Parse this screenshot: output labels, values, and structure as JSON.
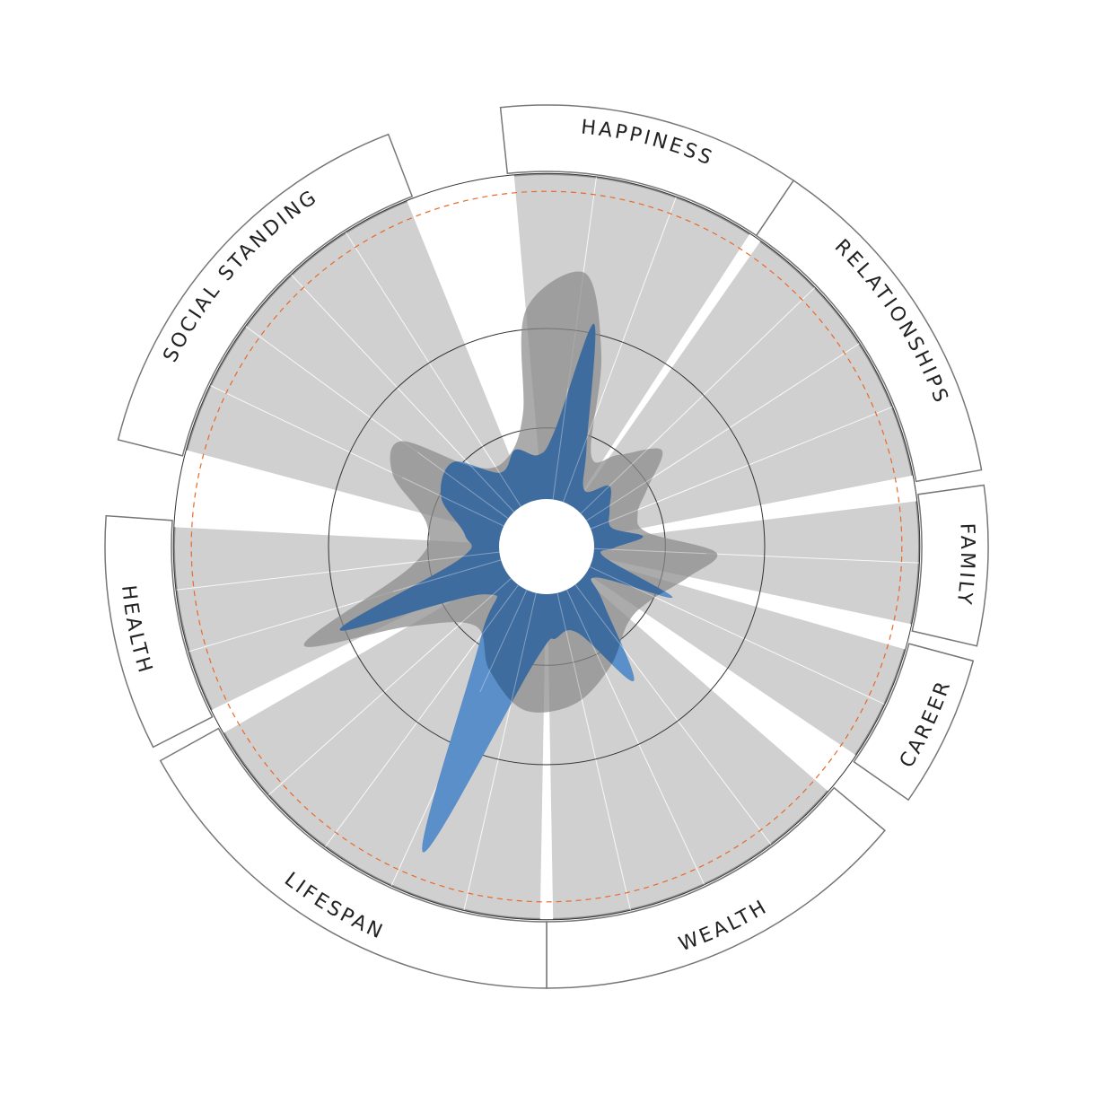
{
  "chart_data": {
    "type": "radial-area",
    "categories": [
      {
        "label": "HAPPINESS",
        "start_deg": -5,
        "end_deg": 33
      },
      {
        "label": "RELATIONSHIPS",
        "start_deg": 35,
        "end_deg": 79
      },
      {
        "label": "FAMILY",
        "start_deg": 83,
        "end_deg": 102
      },
      {
        "label": "CAREER",
        "start_deg": 106,
        "end_deg": 124
      },
      {
        "label": "WEALTH",
        "start_deg": 131,
        "end_deg": 179
      },
      {
        "label": "LIFESPAN",
        "start_deg": 181,
        "end_deg": 240
      },
      {
        "label": "HEALTH",
        "start_deg": 244,
        "end_deg": 273
      },
      {
        "label": "SOCIAL STANDING",
        "start_deg": 285,
        "end_deg": 338
      }
    ],
    "radial_rings": [
      0.245,
      0.45,
      0.77
    ],
    "reference_line": {
      "radius": 0.83,
      "color": "#e8692a"
    },
    "inner_reference": {
      "radius": 0.205
    },
    "series": [
      {
        "role": "range",
        "color": "#8a8a8a",
        "points": [
          [
            -5,
            0.49
          ],
          [
            8,
            0.57
          ],
          [
            16,
            0.41
          ],
          [
            26,
            0.21
          ],
          [
            38,
            0.24
          ],
          [
            50,
            0.31
          ],
          [
            60,
            0.24
          ],
          [
            70,
            0.2
          ],
          [
            82,
            0.21
          ],
          [
            92,
            0.35
          ],
          [
            102,
            0.3
          ],
          [
            118,
            0.24
          ],
          [
            133,
            0.23
          ],
          [
            152,
            0.28
          ],
          [
            170,
            0.33
          ],
          [
            188,
            0.34
          ],
          [
            205,
            0.28
          ],
          [
            222,
            0.22
          ],
          [
            240,
            0.33
          ],
          [
            248,
            0.54
          ],
          [
            262,
            0.28
          ],
          [
            280,
            0.25
          ],
          [
            295,
            0.35
          ],
          [
            306,
            0.37
          ],
          [
            318,
            0.22
          ],
          [
            336,
            0.2
          ],
          [
            350,
            0.28
          ]
        ]
      },
      {
        "role": "value",
        "color": "#3f6c9f",
        "highlight_color": "#5a8fc9",
        "points": [
          [
            -5,
            0.19
          ],
          [
            4,
            0.24
          ],
          [
            12,
            0.47
          ],
          [
            22,
            0.22
          ],
          [
            34,
            0.14
          ],
          [
            46,
            0.18
          ],
          [
            60,
            0.15
          ],
          [
            74,
            0.14
          ],
          [
            84,
            0.2
          ],
          [
            91,
            0.14
          ],
          [
            100,
            0.12
          ],
          [
            112,
            0.28
          ],
          [
            122,
            0.12
          ],
          [
            134,
            0.16
          ],
          [
            147,
            0.33
          ],
          [
            160,
            0.19
          ],
          [
            174,
            0.19
          ],
          [
            186,
            0.24
          ],
          [
            202,
            0.68
          ],
          [
            216,
            0.23
          ],
          [
            232,
            0.16
          ],
          [
            248,
            0.46
          ],
          [
            262,
            0.18
          ],
          [
            278,
            0.17
          ],
          [
            295,
            0.24
          ],
          [
            312,
            0.26
          ],
          [
            328,
            0.18
          ],
          [
            342,
            0.21
          ]
        ]
      }
    ],
    "xlabel": "",
    "ylabel": ""
  }
}
